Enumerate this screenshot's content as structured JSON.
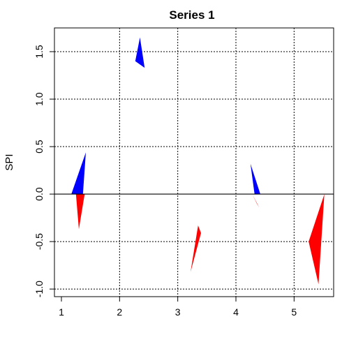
{
  "chart_data": {
    "type": "area",
    "title": "Series 1",
    "ylabel": "SPI",
    "xlabel": "",
    "xlim": [
      0.88,
      5.68
    ],
    "ylim": [
      -1.08,
      1.75
    ],
    "x_ticks": [
      1,
      2,
      3,
      4,
      5
    ],
    "y_ticks": [
      -1.0,
      -0.5,
      0.0,
      0.5,
      1.0,
      1.5
    ],
    "x_gridlines": [
      2,
      3,
      4,
      5
    ],
    "y_gridlines": [
      -1.0,
      -0.5,
      0.5,
      1.0,
      1.5
    ],
    "zero_line": 0.0,
    "grid": true,
    "colors": {
      "positive": "#0000ff",
      "negative": "#ff0000"
    },
    "series": [
      {
        "sign": "positive",
        "polygon": [
          [
            1.17,
            0.0
          ],
          [
            1.42,
            0.44
          ],
          [
            1.37,
            0.0
          ]
        ]
      },
      {
        "sign": "negative",
        "polygon": [
          [
            1.25,
            0.0
          ],
          [
            1.3,
            -0.37
          ],
          [
            1.4,
            0.0
          ]
        ]
      },
      {
        "sign": "positive",
        "polygon": [
          [
            2.27,
            1.4
          ],
          [
            2.35,
            1.65
          ],
          [
            2.43,
            1.33
          ]
        ]
      },
      {
        "sign": "negative",
        "polygon": [
          [
            3.22,
            -0.82
          ],
          [
            3.4,
            -0.41
          ],
          [
            3.35,
            -0.33
          ]
        ]
      },
      {
        "sign": "positive",
        "polygon": [
          [
            4.25,
            0.32
          ],
          [
            4.32,
            0.0
          ],
          [
            4.42,
            0.0
          ]
        ]
      },
      {
        "sign": "negative",
        "polygon": [
          [
            4.28,
            0.0
          ],
          [
            4.4,
            -0.14
          ],
          [
            4.36,
            -0.1
          ]
        ]
      },
      {
        "sign": "negative",
        "polygon": [
          [
            5.25,
            -0.5
          ],
          [
            5.42,
            -0.95
          ],
          [
            5.52,
            0.0
          ]
        ]
      }
    ]
  }
}
